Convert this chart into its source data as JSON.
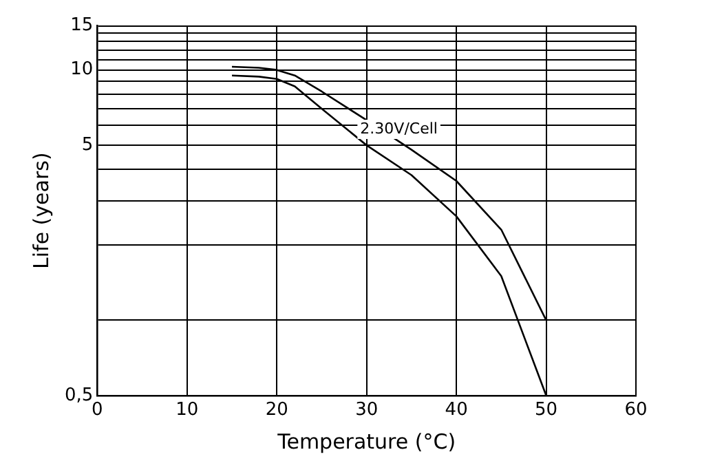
{
  "chart_data": {
    "type": "line",
    "xlabel": "Temperature (°C)",
    "ylabel": "Life (years)",
    "xlim": [
      0,
      60
    ],
    "xticks": [
      0,
      10,
      20,
      30,
      40,
      50,
      60
    ],
    "ylim": [
      0.5,
      15
    ],
    "log": "y",
    "yticks": [
      {
        "value": 0.5,
        "label": "0,5"
      },
      {
        "value": 1,
        "label": null
      },
      {
        "value": 2,
        "label": null
      },
      {
        "value": 3,
        "label": null
      },
      {
        "value": 4,
        "label": null
      },
      5,
      {
        "value": 6,
        "label": null
      },
      {
        "value": 7,
        "label": null
      },
      {
        "value": 8,
        "label": null
      },
      {
        "value": 9,
        "label": null
      },
      10,
      {
        "value": 11,
        "label": null
      },
      {
        "value": 12,
        "label": null
      },
      {
        "value": 13,
        "label": null
      },
      {
        "value": 14,
        "label": null
      },
      15
    ],
    "grid": true,
    "marker": "none",
    "line_style": "solid",
    "series": [
      {
        "color": "#000000",
        "x": [
          15,
          18,
          20,
          22,
          25,
          30,
          35,
          40,
          45,
          50
        ],
        "values": [
          10.3,
          10.2,
          10,
          9.5,
          8.2,
          6.3,
          4.8,
          3.6,
          2.3,
          1
        ]
      },
      {
        "color": "#000000",
        "x": [
          15,
          18,
          20,
          22,
          25,
          30,
          35,
          40,
          45,
          50
        ],
        "values": [
          9.5,
          9.4,
          9.2,
          8.6,
          7,
          5,
          3.8,
          2.6,
          1.5,
          0.5
        ]
      }
    ],
    "annotations": [
      "2.30V/Cell"
    ]
  }
}
